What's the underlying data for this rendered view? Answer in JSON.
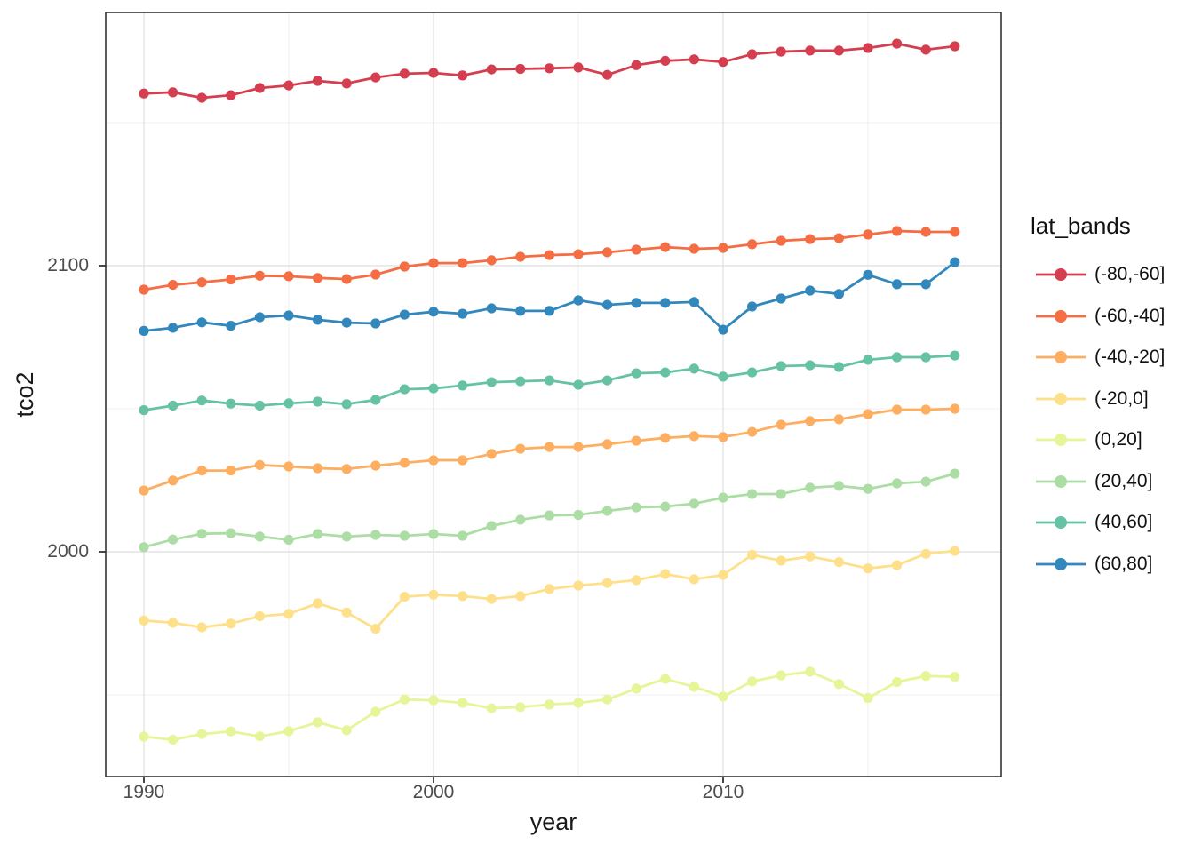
{
  "chart_data": {
    "type": "line",
    "title": "",
    "xlabel": "year",
    "ylabel": "tco2",
    "legend_title": "lat_bands",
    "legend_position": "right",
    "grid": true,
    "marker": "circle",
    "x_range": [
      1988.7,
      2019.6
    ],
    "y_range": [
      1921.4,
      2188.5
    ],
    "x_ticks": [
      {
        "label": "1990",
        "value": 1990
      },
      {
        "label": "2000",
        "value": 2000
      },
      {
        "label": "2010",
        "value": 2010
      }
    ],
    "x_minor": [
      1995,
      2005,
      2015
    ],
    "y_ticks": [
      {
        "label": "2100",
        "value": 2100
      },
      {
        "label": "2000",
        "value": 2000
      }
    ],
    "y_minor": [
      2150,
      2050,
      1950
    ],
    "x": [
      1990,
      1991,
      1992,
      1993,
      1994,
      1995,
      1996,
      1997,
      1998,
      1999,
      2000,
      2001,
      2002,
      2003,
      2004,
      2005,
      2006,
      2007,
      2008,
      2009,
      2010,
      2011,
      2012,
      2013,
      2014,
      2015,
      2016,
      2017,
      2018
    ],
    "series": [
      {
        "name": "(-80,-60]",
        "color": "#D53E4F",
        "values": [
          2160.2,
          2160.6,
          2158.7,
          2159.6,
          2162.1,
          2163.0,
          2164.6,
          2163.7,
          2165.8,
          2167.1,
          2167.4,
          2166.5,
          2168.6,
          2168.8,
          2169.0,
          2169.3,
          2166.7,
          2170.1,
          2171.6,
          2172.1,
          2171.2,
          2173.9,
          2174.8,
          2175.2,
          2175.2,
          2176.1,
          2177.6,
          2175.5,
          2176.7
        ]
      },
      {
        "name": "(-60,-40]",
        "color": "#F46D43",
        "values": [
          2091.6,
          2093.3,
          2094.2,
          2095.2,
          2096.5,
          2096.3,
          2095.7,
          2095.3,
          2096.9,
          2099.7,
          2100.9,
          2100.9,
          2101.9,
          2103.1,
          2103.7,
          2104.0,
          2104.7,
          2105.6,
          2106.5,
          2105.9,
          2106.2,
          2107.5,
          2108.7,
          2109.3,
          2109.6,
          2110.9,
          2112.1,
          2111.8,
          2111.8
        ]
      },
      {
        "name": "(-40,-20]",
        "color": "#FDAE61",
        "values": [
          2021.4,
          2024.9,
          2028.4,
          2028.4,
          2030.3,
          2029.8,
          2029.2,
          2028.9,
          2030.1,
          2031.1,
          2032.0,
          2032.0,
          2034.2,
          2036.0,
          2036.6,
          2036.6,
          2037.6,
          2038.8,
          2039.8,
          2040.4,
          2040.1,
          2041.9,
          2044.4,
          2045.7,
          2046.3,
          2048.1,
          2049.7,
          2049.7,
          2050.0
        ]
      },
      {
        "name": "(-20,0]",
        "color": "#FEE08B",
        "values": [
          1976.0,
          1975.2,
          1973.6,
          1974.9,
          1977.5,
          1978.3,
          1982.0,
          1978.8,
          1973.1,
          1984.3,
          1985.0,
          1984.5,
          1983.5,
          1984.5,
          1987.0,
          1988.2,
          1989.1,
          1990.1,
          1992.2,
          1990.4,
          1991.9,
          1998.9,
          1996.9,
          1998.4,
          1996.4,
          1994.2,
          1995.3,
          1999.3,
          2000.3
        ]
      },
      {
        "name": "(0,20]",
        "color": "#E6F598",
        "values": [
          1935.4,
          1934.3,
          1936.3,
          1937.2,
          1935.5,
          1937.3,
          1940.4,
          1937.6,
          1944.1,
          1948.4,
          1948.1,
          1947.2,
          1945.3,
          1945.7,
          1946.6,
          1947.2,
          1948.4,
          1952.2,
          1955.6,
          1952.8,
          1949.4,
          1954.7,
          1956.8,
          1958.1,
          1953.8,
          1948.9,
          1954.5,
          1956.6,
          1956.3
        ]
      },
      {
        "name": "(20,40]",
        "color": "#ABDDA4",
        "values": [
          2001.6,
          2004.3,
          2006.3,
          2006.5,
          2005.3,
          2004.2,
          2006.2,
          2005.3,
          2005.9,
          2005.6,
          2006.2,
          2005.6,
          2009.0,
          2011.2,
          2012.7,
          2012.9,
          2014.3,
          2015.5,
          2015.8,
          2016.8,
          2018.9,
          2020.2,
          2020.2,
          2022.4,
          2023.0,
          2022.0,
          2023.9,
          2024.5,
          2027.3
        ]
      },
      {
        "name": "(40,60]",
        "color": "#66C2A5",
        "values": [
          2049.5,
          2051.1,
          2052.9,
          2051.8,
          2051.1,
          2051.9,
          2052.5,
          2051.6,
          2053.1,
          2056.8,
          2057.1,
          2058.1,
          2059.3,
          2059.6,
          2059.9,
          2058.4,
          2059.9,
          2062.4,
          2062.7,
          2064.0,
          2061.2,
          2062.7,
          2064.9,
          2065.2,
          2064.6,
          2067.1,
          2068.0,
          2068.0,
          2068.6
        ]
      },
      {
        "name": "(60,80]",
        "color": "#3288BD",
        "values": [
          2077.2,
          2078.3,
          2080.2,
          2079.0,
          2082.0,
          2082.6,
          2081.1,
          2080.1,
          2079.8,
          2082.9,
          2083.9,
          2083.2,
          2085.1,
          2084.2,
          2084.2,
          2087.9,
          2086.3,
          2087.0,
          2087.0,
          2087.3,
          2077.6,
          2085.7,
          2088.5,
          2091.3,
          2090.1,
          2096.8,
          2093.5,
          2093.5,
          2101.2
        ]
      }
    ]
  }
}
